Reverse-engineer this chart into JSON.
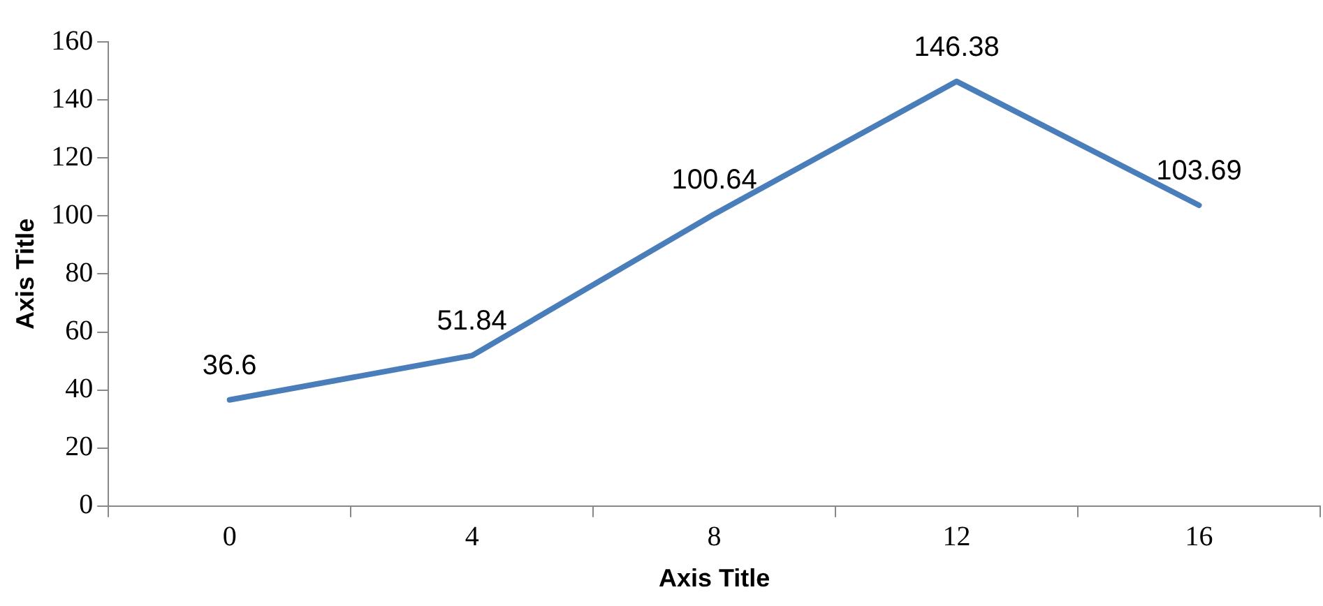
{
  "chart_data": {
    "type": "line",
    "xlabel": "Axis Title",
    "ylabel": "Axis Title",
    "categories": [
      "0",
      "4",
      "8",
      "12",
      "16"
    ],
    "series": [
      {
        "color": "#4a7ebb",
        "values": [
          36.6,
          51.84,
          100.64,
          146.38,
          103.69
        ]
      }
    ],
    "ylim": [
      0,
      160
    ],
    "yticks": [
      0,
      20,
      40,
      60,
      80,
      100,
      120,
      140,
      160
    ],
    "data_labels": true,
    "grid": false,
    "legend": false,
    "marker": "none",
    "line_style": "solid"
  }
}
